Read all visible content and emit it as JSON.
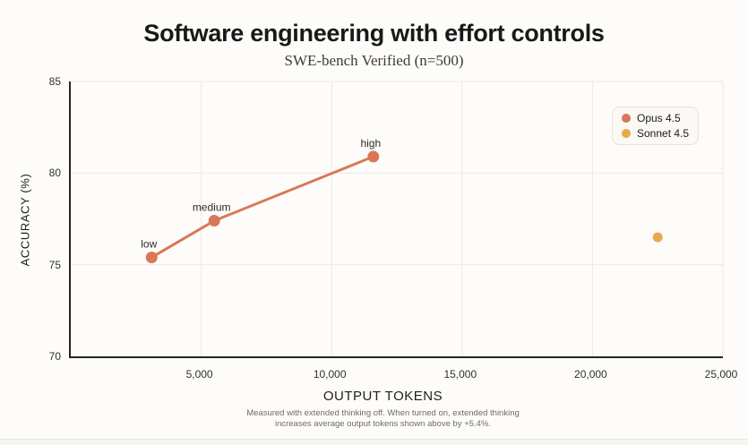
{
  "chart_data": {
    "type": "line",
    "title": "Software engineering with effort controls",
    "subtitle": "SWE-bench Verified (n=500)",
    "xlabel": "OUTPUT TOKENS",
    "ylabel": "ACCURACY (%)",
    "xlim": [
      0,
      25000
    ],
    "ylim": [
      70,
      85
    ],
    "grid": true,
    "legend_position": "top-right",
    "x_ticks": [
      {
        "value": 5000,
        "label": "5,000"
      },
      {
        "value": 10000,
        "label": "10,000"
      },
      {
        "value": 15000,
        "label": "15,000"
      },
      {
        "value": 20000,
        "label": "20,000"
      },
      {
        "value": 25000,
        "label": "25,000"
      }
    ],
    "y_ticks": [
      {
        "value": 70,
        "label": "70"
      },
      {
        "value": 75,
        "label": "75"
      },
      {
        "value": 80,
        "label": "80"
      },
      {
        "value": 85,
        "label": "85"
      }
    ],
    "series": [
      {
        "name": "Opus 4.5",
        "color": "#D97757",
        "line": true,
        "points": [
          {
            "x": 3100,
            "y": 75.4,
            "label": "low"
          },
          {
            "x": 5500,
            "y": 77.4,
            "label": "medium"
          },
          {
            "x": 11600,
            "y": 80.9,
            "label": "high"
          }
        ]
      },
      {
        "name": "Sonnet 4.5",
        "color": "#E9A84F",
        "line": false,
        "points": [
          {
            "x": 22500,
            "y": 76.5,
            "label": ""
          }
        ]
      }
    ],
    "footnote_line1": "Measured with extended thinking off. When turned on, extended thinking",
    "footnote_line2": "increases average output tokens shown above by +5.4%.",
    "colors": {
      "grid": "#ECE9E1",
      "axis": "#262522",
      "background": "#FDFCFA"
    }
  }
}
